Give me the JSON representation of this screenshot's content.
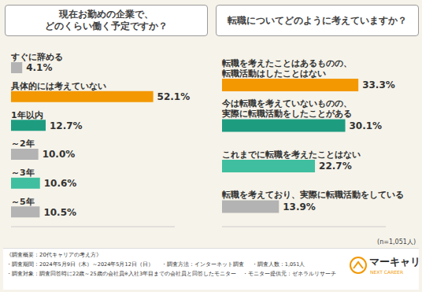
{
  "chart_data": [
    {
      "type": "bar",
      "title": "現在お勤めの企業で、どのくらい働く予定ですか？",
      "orientation": "horizontal",
      "categories": [
        "すぐに辞める",
        "具体的には考えていない",
        "1年以内",
        "～2年",
        "～3年",
        "～5年"
      ],
      "values": [
        4.1,
        52.1,
        12.7,
        10.0,
        10.6,
        10.5
      ],
      "value_labels": [
        "4.1%",
        "52.1%",
        "12.7%",
        "10.0%",
        "10.6%",
        "10.5%"
      ],
      "colors": [
        "#b3b3b3",
        "#f39800",
        "#1e9c80",
        "#b3b3b3",
        "#3fbf9f",
        "#b3b3b3"
      ],
      "xlim": [
        0,
        60
      ],
      "xticks": [
        0,
        60
      ],
      "tick_labels": false,
      "data_labels": true
    },
    {
      "type": "bar",
      "title": "転職についてどのように考えていますか？",
      "orientation": "horizontal",
      "categories": [
        "転職を考えたことはあるものの、転職活動はしたことはない",
        "今は転職を考えていないものの、実際に転職活動をしたことがある",
        "これまでに転職を考えたことはない",
        "転職を考えており、実際に転職活動をしている"
      ],
      "values": [
        33.3,
        30.1,
        22.7,
        13.9
      ],
      "value_labels": [
        "33.3%",
        "30.1%",
        "22.7%",
        "13.9%"
      ],
      "colors": [
        "#f39800",
        "#1e9c80",
        "#3fbf9f",
        "#b3b3b3"
      ],
      "xlim": [
        0,
        40
      ],
      "xticks": [
        0,
        40
      ],
      "tick_labels": false,
      "data_labels": true
    }
  ],
  "note": "(n=1,051人)",
  "footer": {
    "heading": "《調査概要：20代キャリアの考え方》",
    "line1": [
      "・調査期間：2024年5月9日（木）～2024年5月12日（日）",
      "・調査方法：インターネット調査",
      "・調査人数：1,051人"
    ],
    "line2": [
      "・調査対象：調査回答時に22歳～25歳の会社員※入社3年目までの会社員と回答したモニター",
      "・モニター提供元：ゼネラルリサーチ"
    ]
  },
  "logo": {
    "name": "マーキャリ",
    "tagline": "NEXT CAREER"
  }
}
